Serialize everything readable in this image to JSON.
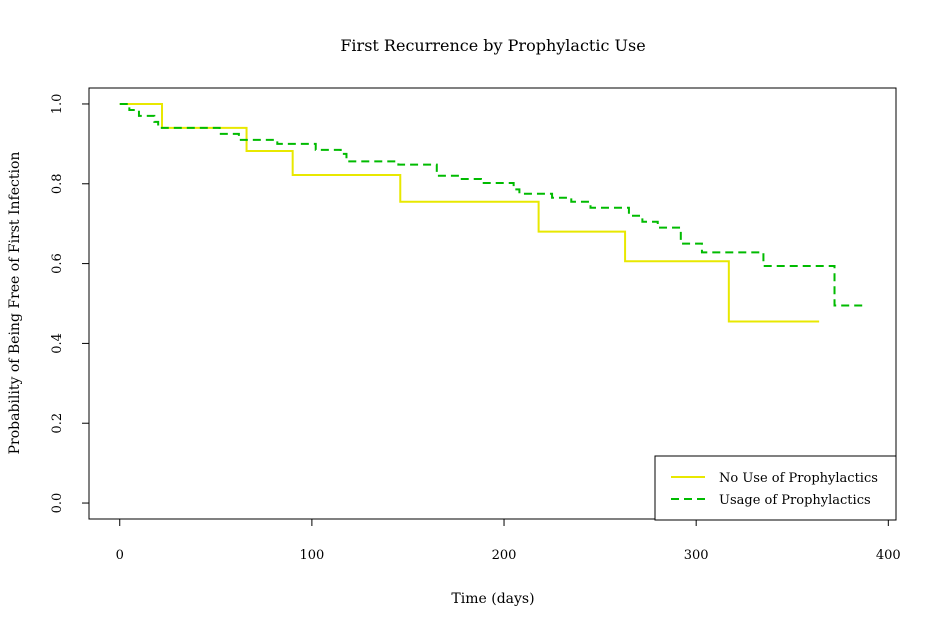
{
  "chart_data": {
    "type": "line",
    "step": true,
    "title": "First Recurrence by Prophylactic Use",
    "xlabel": "Time (days)",
    "ylabel": "Probability of Being Free of First Infection",
    "xlim": [
      -16,
      404
    ],
    "ylim": [
      -0.04,
      1.04
    ],
    "x_ticks": [
      0,
      100,
      200,
      300,
      400
    ],
    "y_ticks": [
      0.0,
      0.2,
      0.4,
      0.6,
      0.8,
      1.0
    ],
    "x_tick_labels": [
      "0",
      "100",
      "200",
      "300",
      "400"
    ],
    "y_tick_labels": [
      "0.0",
      "0.2",
      "0.4",
      "0.6",
      "0.8",
      "1.0"
    ],
    "legend": {
      "position": "bottom-right"
    },
    "series": [
      {
        "name": "No Use of Prophylactics",
        "color": "#e8e800",
        "dash": "solid",
        "points": [
          [
            0,
            1.0
          ],
          [
            22,
            0.94
          ],
          [
            66,
            0.882
          ],
          [
            90,
            0.822
          ],
          [
            146,
            0.755
          ],
          [
            218,
            0.68
          ],
          [
            263,
            0.606
          ],
          [
            317,
            0.455
          ],
          [
            364,
            0.455
          ]
        ]
      },
      {
        "name": "Usage of Prophylactics",
        "color": "#00bb00",
        "dash": "dashed",
        "points": [
          [
            0,
            1.0
          ],
          [
            5,
            0.985
          ],
          [
            10,
            0.97
          ],
          [
            18,
            0.955
          ],
          [
            20,
            0.94
          ],
          [
            52,
            0.925
          ],
          [
            62,
            0.91
          ],
          [
            82,
            0.9
          ],
          [
            102,
            0.885
          ],
          [
            115,
            0.875
          ],
          [
            118,
            0.856
          ],
          [
            145,
            0.848
          ],
          [
            165,
            0.82
          ],
          [
            178,
            0.812
          ],
          [
            188,
            0.802
          ],
          [
            205,
            0.786
          ],
          [
            208,
            0.775
          ],
          [
            225,
            0.765
          ],
          [
            235,
            0.755
          ],
          [
            245,
            0.74
          ],
          [
            265,
            0.72
          ],
          [
            272,
            0.705
          ],
          [
            280,
            0.69
          ],
          [
            292,
            0.65
          ],
          [
            303,
            0.628
          ],
          [
            335,
            0.594
          ],
          [
            372,
            0.495
          ],
          [
            388,
            0.495
          ]
        ]
      }
    ]
  }
}
